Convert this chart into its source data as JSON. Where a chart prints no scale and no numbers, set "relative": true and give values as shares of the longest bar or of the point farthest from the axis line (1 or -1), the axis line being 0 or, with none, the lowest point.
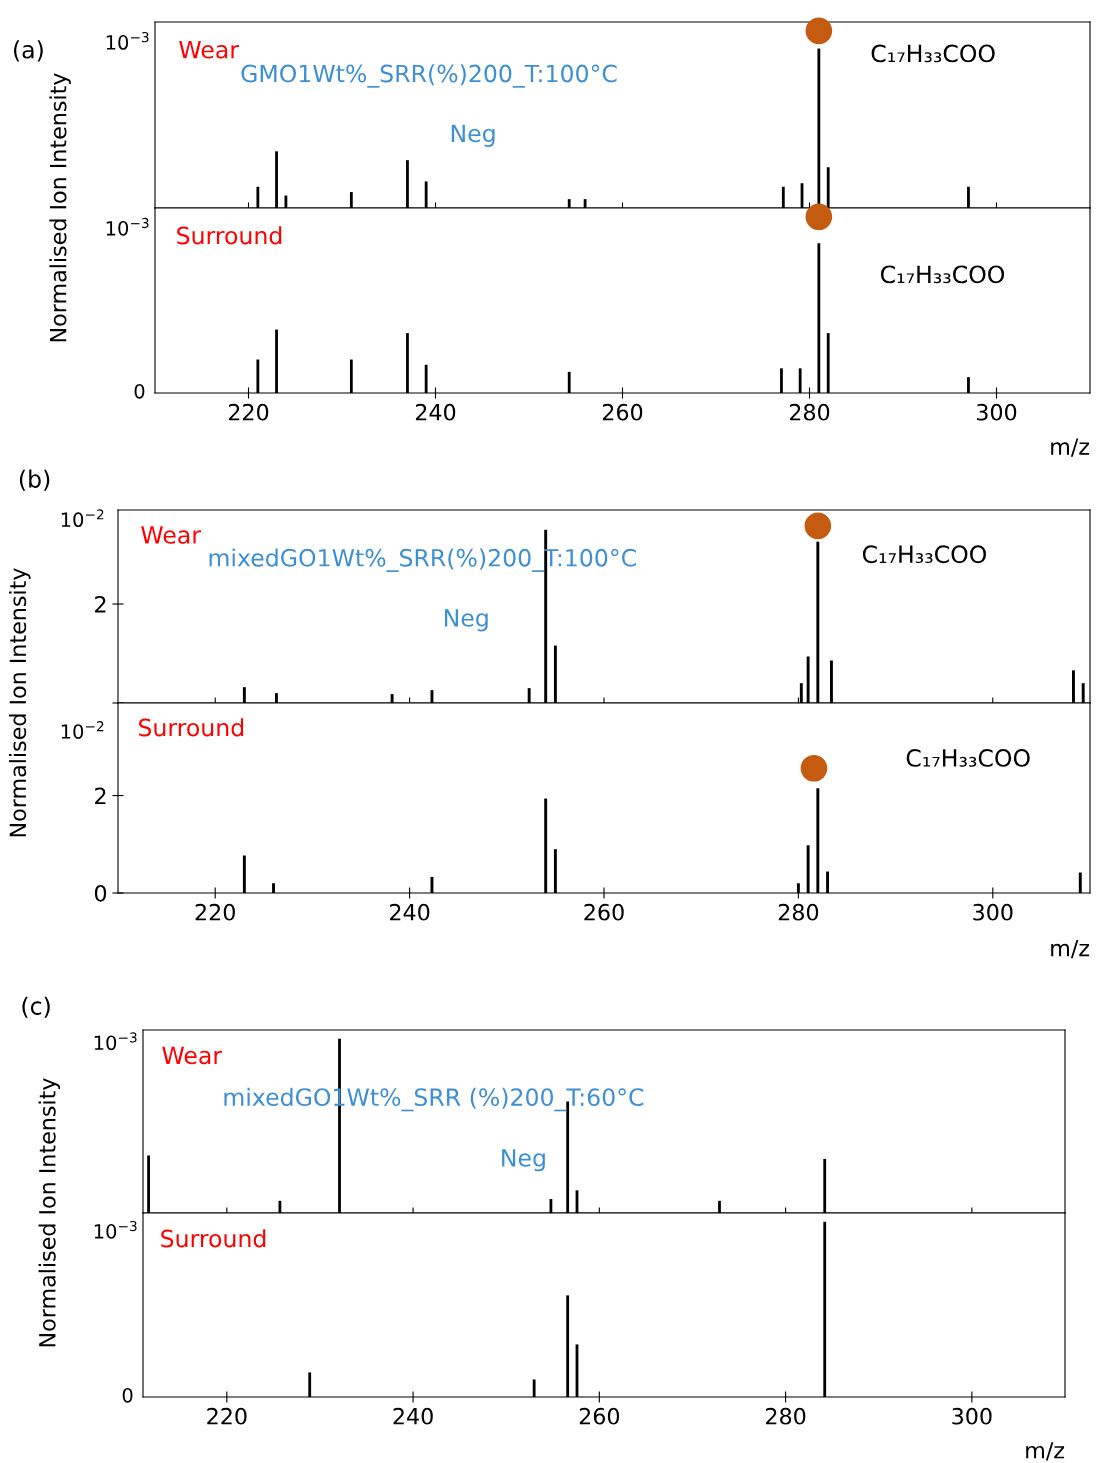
{
  "chart_data": [
    {
      "type": "bar",
      "relative": true,
      "title": "Wear",
      "subtitle": "GMO1Wt%_SRR(%)200_T:100°C",
      "ylabel": "Normalised Ion Intensity",
      "annotations": [
        "(a)",
        "Neg",
        "C₁₇H₃₃COO",
        "10$^{−3}$"
      ],
      "xlim": [
        210,
        310
      ],
      "xticks": [
        220,
        240,
        260,
        280,
        300
      ],
      "tick_labels": false,
      "marker": "circle",
      "series": [
        {
          "color": "#000000",
          "x": [
            221,
            223,
            224,
            231,
            237,
            239,
            254.3,
            256,
            277.2,
            279.2,
            281,
            282,
            297
          ],
          "values": [
            0.12,
            0.32,
            0.07,
            0.09,
            0.27,
            0.15,
            0.05,
            0.05,
            0.12,
            0.14,
            0.9,
            0.23,
            0.12
          ]
        },
        {
          "type": "scatter",
          "color": "#c55a11",
          "x": [
            281
          ],
          "values": [
            1
          ]
        }
      ]
    },
    {
      "type": "bar",
      "relative": true,
      "title": "Surround",
      "xlabel": "m/z",
      "annotations": [
        "C₁₇H₃₃COO",
        "10$^{−3}$",
        "0"
      ],
      "xlim": [
        210,
        310
      ],
      "xticks": [
        220,
        240,
        260,
        280,
        300
      ],
      "tick_labels": "x",
      "marker": "circle",
      "series": [
        {
          "color": "#000000",
          "x": [
            221,
            223,
            231,
            237,
            239,
            254.3,
            277,
            279,
            281,
            282,
            297
          ],
          "values": [
            0.19,
            0.36,
            0.19,
            0.34,
            0.16,
            0.12,
            0.14,
            0.14,
            0.85,
            0.34,
            0.09
          ]
        },
        {
          "type": "scatter",
          "color": "#c55a11",
          "x": [
            281
          ],
          "values": [
            1
          ]
        }
      ]
    },
    {
      "type": "bar",
      "title": "Wear",
      "subtitle": "mixedGO1Wt%_SRR(%)200_T:100°C",
      "ylabel": "Normalised Ion Intensity",
      "annotations": [
        "(b)",
        "Neg",
        "C₁₇H₃₃COO",
        "10$^{−2}$"
      ],
      "xlim": [
        210,
        310
      ],
      "xticks": [
        220,
        240,
        260,
        280,
        300
      ],
      "ylim": [
        0,
        3.9
      ],
      "yticks": [
        {
          "value": 0,
          "label": null
        },
        2
      ],
      "tick_labels": "y",
      "marker": "circle",
      "series": [
        {
          "color": "#000000",
          "x": [
            223,
            226.3,
            238.2,
            242.3,
            252.3,
            254,
            255,
            280.3,
            281,
            282,
            283.4,
            308.3,
            309.3
          ],
          "values": [
            0.32,
            0.2,
            0.18,
            0.26,
            0.3,
            3.5,
            1.16,
            0.4,
            0.94,
            3.26,
            0.86,
            0.66,
            0.4
          ]
        },
        {
          "type": "scatter",
          "color": "#c55a11",
          "x": [
            282
          ],
          "values": [
            3.58
          ]
        }
      ]
    },
    {
      "type": "bar",
      "title": "Surround",
      "xlabel": "m/z",
      "annotations": [
        "C₁₇H₃₃COO",
        "10$^{−2}$"
      ],
      "xlim": [
        210,
        310
      ],
      "xticks": [
        220,
        240,
        260,
        280,
        300
      ],
      "ylim": [
        0,
        3.9
      ],
      "yticks": [
        0,
        2
      ],
      "marker": "circle",
      "series": [
        {
          "color": "#000000",
          "x": [
            223,
            226,
            242.3,
            254,
            255,
            280,
            281,
            282,
            283,
            309
          ],
          "values": [
            0.77,
            0.2,
            0.33,
            1.94,
            0.9,
            0.2,
            0.98,
            2.15,
            0.44,
            0.42
          ]
        },
        {
          "type": "scatter",
          "color": "#c55a11",
          "x": [
            281.6
          ],
          "values": [
            2.56
          ]
        }
      ]
    },
    {
      "type": "bar",
      "relative": true,
      "title": "Wear",
      "subtitle": "mixedGO1Wt%_SRR (%)200_T:60°C",
      "ylabel": "Normalised Ion Intensity",
      "annotations": [
        "(c)",
        "Neg",
        "10$^{−3}$"
      ],
      "xlim": [
        211,
        310
      ],
      "xticks": [
        220,
        240,
        260,
        280,
        300
      ],
      "tick_labels": false,
      "series": [
        {
          "color": "#000000",
          "x": [
            211.6,
            225.7,
            232.1,
            254.8,
            256.6,
            257.6,
            272.9,
            284.2
          ],
          "values": [
            0.33,
            0.07,
            1,
            0.08,
            0.64,
            0.13,
            0.07,
            0.31
          ]
        }
      ]
    },
    {
      "type": "bar",
      "relative": true,
      "title": "Surround",
      "xlabel": "m/z",
      "annotations": [
        "10$^{−3}$",
        "0"
      ],
      "xlim": [
        211,
        310
      ],
      "xticks": [
        220,
        240,
        260,
        280,
        300
      ],
      "tick_labels": "x",
      "series": [
        {
          "color": "#000000",
          "x": [
            228.9,
            253,
            256.6,
            257.6,
            284.2
          ],
          "values": [
            0.14,
            0.1,
            0.58,
            0.3,
            1
          ]
        }
      ]
    }
  ]
}
